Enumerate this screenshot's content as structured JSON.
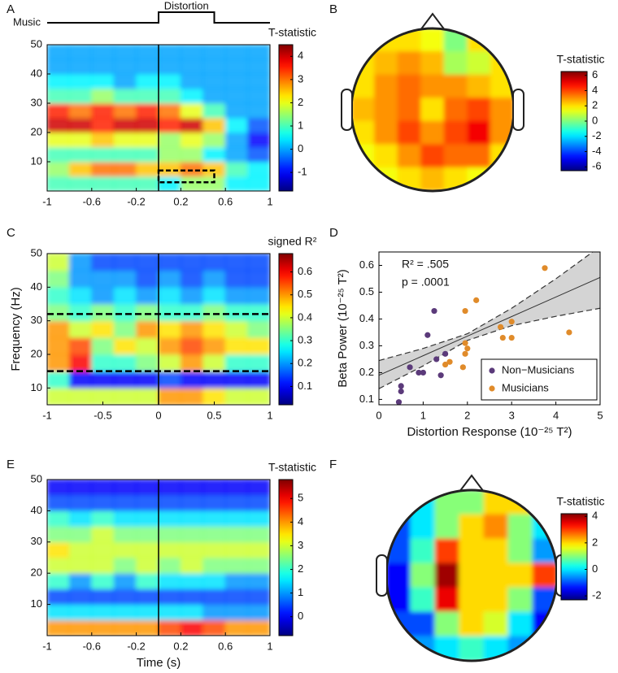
{
  "chart_data": [
    {
      "type": "heatmap",
      "panel": "A",
      "colorbar_label": "T-statistic",
      "colormap": "jet",
      "stimulus": {
        "labels": [
          "Music",
          "Distortion"
        ],
        "window": [
          0,
          0.5
        ]
      },
      "xlim": [
        -1,
        1
      ],
      "xticks": [
        -1,
        -0.6,
        -0.2,
        0.2,
        0.6,
        1
      ],
      "ylim": [
        0,
        50
      ],
      "yticks": [
        10,
        20,
        30,
        40,
        50
      ],
      "x_bins": [
        -1,
        -0.8,
        -0.6,
        -0.4,
        -0.2,
        0,
        0.2,
        0.4,
        0.6,
        0.8,
        1
      ],
      "y_bins": [
        0,
        5,
        10,
        15,
        20,
        25,
        30,
        35,
        40,
        45,
        50
      ],
      "z": [
        [
          1,
          1,
          1,
          1,
          1,
          0.5,
          1.5,
          1.5,
          0.5,
          0.5
        ],
        [
          1.5,
          2.5,
          3,
          3,
          2.5,
          2.5,
          3,
          2.5,
          1,
          0.5
        ],
        [
          1,
          1,
          1,
          1,
          1,
          1.5,
          1.5,
          0.5,
          0,
          -0.5
        ],
        [
          2,
          2,
          2.5,
          2,
          2,
          1.5,
          2,
          1.5,
          0,
          -1
        ],
        [
          4,
          4,
          3.5,
          4,
          4,
          3.5,
          4,
          2.5,
          0.5,
          -0.5
        ],
        [
          3.5,
          3,
          3.5,
          3,
          3.5,
          3,
          2,
          1,
          0,
          0
        ],
        [
          1,
          1,
          1.5,
          1,
          1,
          1,
          0.5,
          0,
          0,
          0
        ],
        [
          0.5,
          0.5,
          0.5,
          0,
          0.5,
          0.5,
          0,
          0,
          0,
          0
        ],
        [
          0,
          0,
          0,
          0,
          0,
          0,
          0,
          0,
          0,
          0
        ],
        [
          0,
          0,
          0,
          0,
          0,
          0,
          0,
          0,
          0,
          0
        ]
      ],
      "event": 0,
      "box": {
        "x": [
          0,
          0.5
        ],
        "y": [
          3,
          7
        ]
      },
      "clim": [
        -1.8,
        4.5
      ],
      "cticks": [
        -1,
        0,
        1,
        2,
        3,
        4
      ]
    },
    {
      "type": "topomap",
      "panel": "B",
      "colorbar_label": "T-statistic",
      "colormap": "jet",
      "z": [
        [
          2,
          2,
          2,
          1.5,
          0,
          2,
          2
        ],
        [
          2,
          2.5,
          3,
          2.5,
          0.5,
          1,
          2
        ],
        [
          2,
          3,
          3.5,
          3,
          3,
          2.5,
          2
        ],
        [
          2.5,
          3,
          3.5,
          2,
          3.5,
          4,
          3
        ],
        [
          2,
          3,
          4,
          3,
          4,
          5,
          3
        ],
        [
          1.5,
          2,
          3,
          4,
          3.5,
          3.5,
          2
        ],
        [
          1,
          1.5,
          2,
          2.5,
          2,
          1.5,
          1
        ]
      ],
      "clim": [
        -6.5,
        6.5
      ],
      "cticks": [
        -6,
        -4,
        -2,
        0,
        2,
        4,
        6
      ]
    },
    {
      "type": "heatmap",
      "panel": "C",
      "colorbar_label": "signed R²",
      "colormap": "jet",
      "ylabel": "Frequency (Hz)",
      "xlim": [
        -1,
        1
      ],
      "xticks": [
        -1,
        -0.5,
        0,
        0.5,
        1
      ],
      "ylim": [
        5,
        50
      ],
      "yticks": [
        10,
        20,
        30,
        40,
        50
      ],
      "x_bins": [
        -1,
        -0.8,
        -0.6,
        -0.4,
        -0.2,
        0,
        0.2,
        0.4,
        0.6,
        0.8,
        1
      ],
      "y_bins": [
        5,
        10,
        15,
        20,
        25,
        30,
        35,
        40,
        45,
        50
      ],
      "z": [
        [
          0.4,
          0.4,
          0.4,
          0.4,
          0.4,
          0.5,
          0.5,
          0.45,
          0.4,
          0.4
        ],
        [
          0.3,
          0.1,
          0.1,
          0.1,
          0.1,
          0.15,
          0.1,
          0.1,
          0.1,
          0.1
        ],
        [
          0.5,
          0.6,
          0.3,
          0.3,
          0.35,
          0.4,
          0.5,
          0.4,
          0.3,
          0.3
        ],
        [
          0.5,
          0.55,
          0.35,
          0.45,
          0.4,
          0.5,
          0.55,
          0.5,
          0.45,
          0.45
        ],
        [
          0.5,
          0.4,
          0.45,
          0.35,
          0.5,
          0.45,
          0.5,
          0.45,
          0.4,
          0.35
        ],
        [
          0.35,
          0.3,
          0.35,
          0.3,
          0.35,
          0.3,
          0.3,
          0.35,
          0.3,
          0.3
        ],
        [
          0.3,
          0.25,
          0.2,
          0.25,
          0.2,
          0.25,
          0.2,
          0.25,
          0.2,
          0.2
        ],
        [
          0.35,
          0.2,
          0.2,
          0.2,
          0.15,
          0.2,
          0.15,
          0.2,
          0.15,
          0.15
        ],
        [
          0.4,
          0.2,
          0.15,
          0.15,
          0.15,
          0.15,
          0.15,
          0.15,
          0.15,
          0.15
        ]
      ],
      "event": 0,
      "hlines": [
        15,
        32
      ],
      "clim": [
        0.02,
        0.68
      ],
      "cticks": [
        0.1,
        0.2,
        0.3,
        0.4,
        0.5,
        0.6
      ]
    },
    {
      "type": "scatter",
      "panel": "D",
      "xlabel": "Distortion Response (10⁻²⁵ T²)",
      "ylabel": "Beta Power (10⁻²⁵ T²)",
      "annotations": [
        "R² = .505",
        "p = .0001"
      ],
      "xlim": [
        0,
        5
      ],
      "xticks": [
        0,
        1,
        2,
        3,
        4,
        5
      ],
      "ylim": [
        0.08,
        0.65
      ],
      "yticks": [
        0.1,
        0.2,
        0.3,
        0.4,
        0.5,
        0.6
      ],
      "legend": "lower right",
      "series": [
        {
          "name": "Non−Musicians",
          "color": "#5b3a7a",
          "x": [
            0.45,
            0.5,
            0.5,
            0.7,
            0.9,
            1.0,
            1.1,
            1.25,
            1.3,
            1.4,
            1.5
          ],
          "values": [
            0.09,
            0.13,
            0.15,
            0.22,
            0.2,
            0.2,
            0.34,
            0.43,
            0.25,
            0.19,
            0.27
          ]
        },
        {
          "name": "Musicians",
          "color": "#e08b2a",
          "x": [
            1.5,
            1.6,
            1.9,
            1.95,
            1.95,
            2.0,
            1.95,
            2.2,
            2.75,
            2.8,
            3.0,
            3.0,
            3.75,
            4.3
          ],
          "values": [
            0.23,
            0.24,
            0.22,
            0.27,
            0.31,
            0.29,
            0.43,
            0.47,
            0.37,
            0.33,
            0.33,
            0.39,
            0.59,
            0.35
          ]
        }
      ],
      "fit": {
        "x": [
          0,
          1,
          2,
          3,
          4,
          5
        ],
        "values": [
          0.19,
          0.263,
          0.336,
          0.409,
          0.482,
          0.555
        ],
        "upper": [
          0.245,
          0.29,
          0.345,
          0.44,
          0.55,
          0.67
        ],
        "lower": [
          0.14,
          0.225,
          0.32,
          0.375,
          0.41,
          0.44
        ]
      }
    },
    {
      "type": "heatmap",
      "panel": "E",
      "colorbar_label": "T-statistic",
      "colormap": "jet",
      "xlabel": "Time (s)",
      "xlim": [
        -1,
        1
      ],
      "xticks": [
        -1,
        -0.6,
        -0.2,
        0.2,
        0.6,
        1
      ],
      "ylim": [
        0,
        50
      ],
      "yticks": [
        10,
        20,
        30,
        40,
        50
      ],
      "x_bins": [
        -1,
        -0.8,
        -0.6,
        -0.4,
        -0.2,
        0,
        0.2,
        0.4,
        0.6,
        0.8,
        1
      ],
      "y_bins": [
        0,
        5,
        10,
        15,
        20,
        25,
        30,
        35,
        40,
        45,
        50
      ],
      "z": [
        [
          4,
          4,
          4,
          4,
          4,
          4.5,
          5,
          4.5,
          4,
          4
        ],
        [
          1.5,
          1.5,
          1.5,
          1.5,
          1.5,
          1.5,
          1.5,
          1,
          1,
          1
        ],
        [
          0.5,
          0.5,
          0.5,
          0.5,
          0.5,
          0.5,
          0.5,
          0.5,
          0.5,
          0.5
        ],
        [
          2,
          1,
          2,
          1,
          2,
          1.5,
          1.5,
          1.5,
          1,
          1
        ],
        [
          3,
          3,
          3,
          2.5,
          3,
          2.5,
          3,
          2.5,
          2.5,
          2.5
        ],
        [
          3.5,
          3,
          3,
          3,
          3,
          3,
          3,
          3,
          3,
          3
        ],
        [
          2.5,
          2.5,
          3,
          2.5,
          2.5,
          2.5,
          2.5,
          2.5,
          2.5,
          2.5
        ],
        [
          2,
          1.5,
          2,
          1.5,
          1.5,
          1.5,
          1.5,
          1.5,
          1.5,
          1.5
        ],
        [
          0.5,
          0.5,
          0.5,
          0.5,
          0.5,
          0.5,
          0.5,
          0.5,
          0.5,
          0.5
        ],
        [
          0,
          0,
          0,
          0,
          0,
          0,
          0,
          0,
          0,
          0
        ]
      ],
      "event": 0,
      "clim": [
        -0.8,
        5.8
      ],
      "cticks": [
        0,
        1,
        2,
        3,
        4,
        5
      ]
    },
    {
      "type": "topomap",
      "panel": "F",
      "colorbar_label": "T-statistic",
      "colormap": "jet",
      "z": [
        [
          0,
          0,
          1,
          1,
          2,
          2,
          0
        ],
        [
          -1,
          0,
          1,
          2,
          2.5,
          1,
          0
        ],
        [
          -1,
          0.5,
          3,
          2,
          2,
          1,
          -0.5
        ],
        [
          -1.5,
          1,
          4,
          2,
          2,
          2,
          3
        ],
        [
          -1.5,
          0.5,
          3.5,
          2,
          2,
          1,
          -1
        ],
        [
          -1,
          -1,
          1,
          2,
          1.5,
          0,
          -1.5
        ],
        [
          -1,
          -0.5,
          0,
          0.5,
          0,
          -0.5,
          -1
        ]
      ],
      "clim": [
        -2.3,
        4.2
      ],
      "cticks": [
        -2,
        0,
        2,
        4
      ]
    }
  ]
}
